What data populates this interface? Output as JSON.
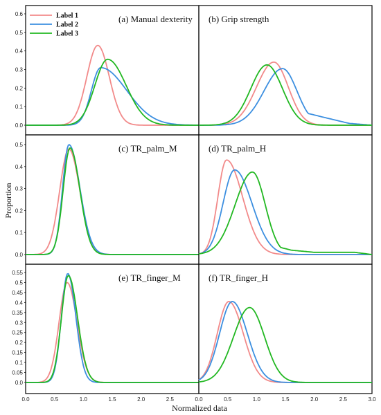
{
  "figure": {
    "ylabel": "Proportion",
    "xlabel": "Normalized data"
  },
  "chart_data": [
    {
      "type": "line",
      "title": "(a) Manual dexterity",
      "xlim": [
        0,
        3
      ],
      "ylim": [
        0,
        0.6
      ],
      "yticks": [
        "0.0",
        "0.1",
        "0.2",
        "0.3",
        "0.4",
        "0.5",
        "0.6"
      ],
      "legend": {
        "placement": "top-left",
        "entries": [
          "Label 1",
          "Label 2",
          "Label 3"
        ]
      },
      "series": [
        {
          "name": "Label 1",
          "color": "#f28a8a",
          "peak_x": 1.25,
          "peak_y": 0.43,
          "sd_left": 0.19,
          "sd_right": 0.2
        },
        {
          "name": "Label 2",
          "color": "#3c8fe0",
          "peak_x": 1.3,
          "peak_y": 0.31,
          "sd_left": 0.16,
          "sd_right": 0.45
        },
        {
          "name": "Label 3",
          "color": "#22b822",
          "peak_x": 1.42,
          "peak_y": 0.355,
          "sd_left": 0.22,
          "sd_right": 0.32
        }
      ]
    },
    {
      "type": "line",
      "title": "(b) Grip strength",
      "xlim": [
        0,
        3
      ],
      "ylim": [
        0,
        0.6
      ],
      "series": [
        {
          "name": "Label 1",
          "color": "#f28a8a",
          "peak_x": 1.3,
          "peak_y": 0.34,
          "sd_left": 0.3,
          "sd_right": 0.25
        },
        {
          "name": "Label 2",
          "color": "#3c8fe0",
          "peak_x": 1.45,
          "peak_y": 0.305,
          "sd_left": 0.32,
          "sd_right": 0.25,
          "tail": [
            [
              1.8,
              0.07
            ],
            [
              2.2,
              0.04
            ],
            [
              2.6,
              0.01
            ],
            [
              3.0,
              0.0
            ]
          ]
        },
        {
          "name": "Label 3",
          "color": "#22b822",
          "peak_x": 1.18,
          "peak_y": 0.325,
          "sd_left": 0.28,
          "sd_right": 0.27
        }
      ]
    },
    {
      "type": "line",
      "title": "(c) TR_palm_M",
      "xlim": [
        0,
        3
      ],
      "ylim": [
        0,
        0.5
      ],
      "yticks": [
        "0.0",
        "0.1",
        "0.2",
        "0.3",
        "0.4",
        "0.5"
      ],
      "series": [
        {
          "name": "Label 1",
          "color": "#f28a8a",
          "peak_x": 0.75,
          "peak_y": 0.48,
          "sd_left": 0.16,
          "sd_right": 0.19
        },
        {
          "name": "Label 2",
          "color": "#3c8fe0",
          "peak_x": 0.75,
          "peak_y": 0.5,
          "sd_left": 0.11,
          "sd_right": 0.19
        },
        {
          "name": "Label 3",
          "color": "#22b822",
          "peak_x": 0.77,
          "peak_y": 0.485,
          "sd_left": 0.12,
          "sd_right": 0.17
        }
      ]
    },
    {
      "type": "line",
      "title": "(d) TR_palm_H",
      "xlim": [
        0,
        3
      ],
      "ylim": [
        0,
        0.5
      ],
      "series": [
        {
          "name": "Label 1",
          "color": "#f28a8a",
          "peak_x": 0.48,
          "peak_y": 0.43,
          "sd_left": 0.15,
          "sd_right": 0.28
        },
        {
          "name": "Label 2",
          "color": "#3c8fe0",
          "peak_x": 0.62,
          "peak_y": 0.385,
          "sd_left": 0.2,
          "sd_right": 0.3
        },
        {
          "name": "Label 3",
          "color": "#22b822",
          "peak_x": 0.93,
          "peak_y": 0.375,
          "sd_left": 0.3,
          "sd_right": 0.22,
          "tail": [
            [
              1.3,
              0.04
            ],
            [
              1.6,
              0.02
            ],
            [
              2.0,
              0.01
            ],
            [
              2.7,
              0.01
            ],
            [
              3.0,
              0.0
            ]
          ]
        }
      ]
    },
    {
      "type": "line",
      "title": "(e) TR_finger_M",
      "xlim": [
        0,
        3
      ],
      "ylim": [
        0,
        0.55
      ],
      "yticks": [
        "0.0",
        "0.05",
        "0.1",
        "0.15",
        "0.2",
        "0.25",
        "0.3",
        "0.35",
        "0.4",
        "0.45",
        "0.5",
        "0.55"
      ],
      "xticks": [
        "0.0",
        "0.5",
        "1.0",
        "1.5",
        "2.0",
        "2.5"
      ],
      "series": [
        {
          "name": "Label 1",
          "color": "#f28a8a",
          "peak_x": 0.72,
          "peak_y": 0.5,
          "sd_left": 0.14,
          "sd_right": 0.17
        },
        {
          "name": "Label 2",
          "color": "#3c8fe0",
          "peak_x": 0.73,
          "peak_y": 0.545,
          "sd_left": 0.11,
          "sd_right": 0.14
        },
        {
          "name": "Label 3",
          "color": "#22b822",
          "peak_x": 0.74,
          "peak_y": 0.535,
          "sd_left": 0.12,
          "sd_right": 0.16
        }
      ]
    },
    {
      "type": "line",
      "title": "(f) TR_finger_H",
      "xlim": [
        0,
        3
      ],
      "ylim": [
        0,
        0.55
      ],
      "xticks": [
        "0.0",
        "0.5",
        "1.0",
        "1.5",
        "2.0",
        "2.5",
        "3.0"
      ],
      "series": [
        {
          "name": "Label 1",
          "color": "#f28a8a",
          "peak_x": 0.52,
          "peak_y": 0.405,
          "sd_left": 0.2,
          "sd_right": 0.25
        },
        {
          "name": "Label 2",
          "color": "#3c8fe0",
          "peak_x": 0.58,
          "peak_y": 0.405,
          "sd_left": 0.22,
          "sd_right": 0.26
        },
        {
          "name": "Label 3",
          "color": "#22b822",
          "peak_x": 0.88,
          "peak_y": 0.375,
          "sd_left": 0.28,
          "sd_right": 0.26
        }
      ]
    }
  ]
}
